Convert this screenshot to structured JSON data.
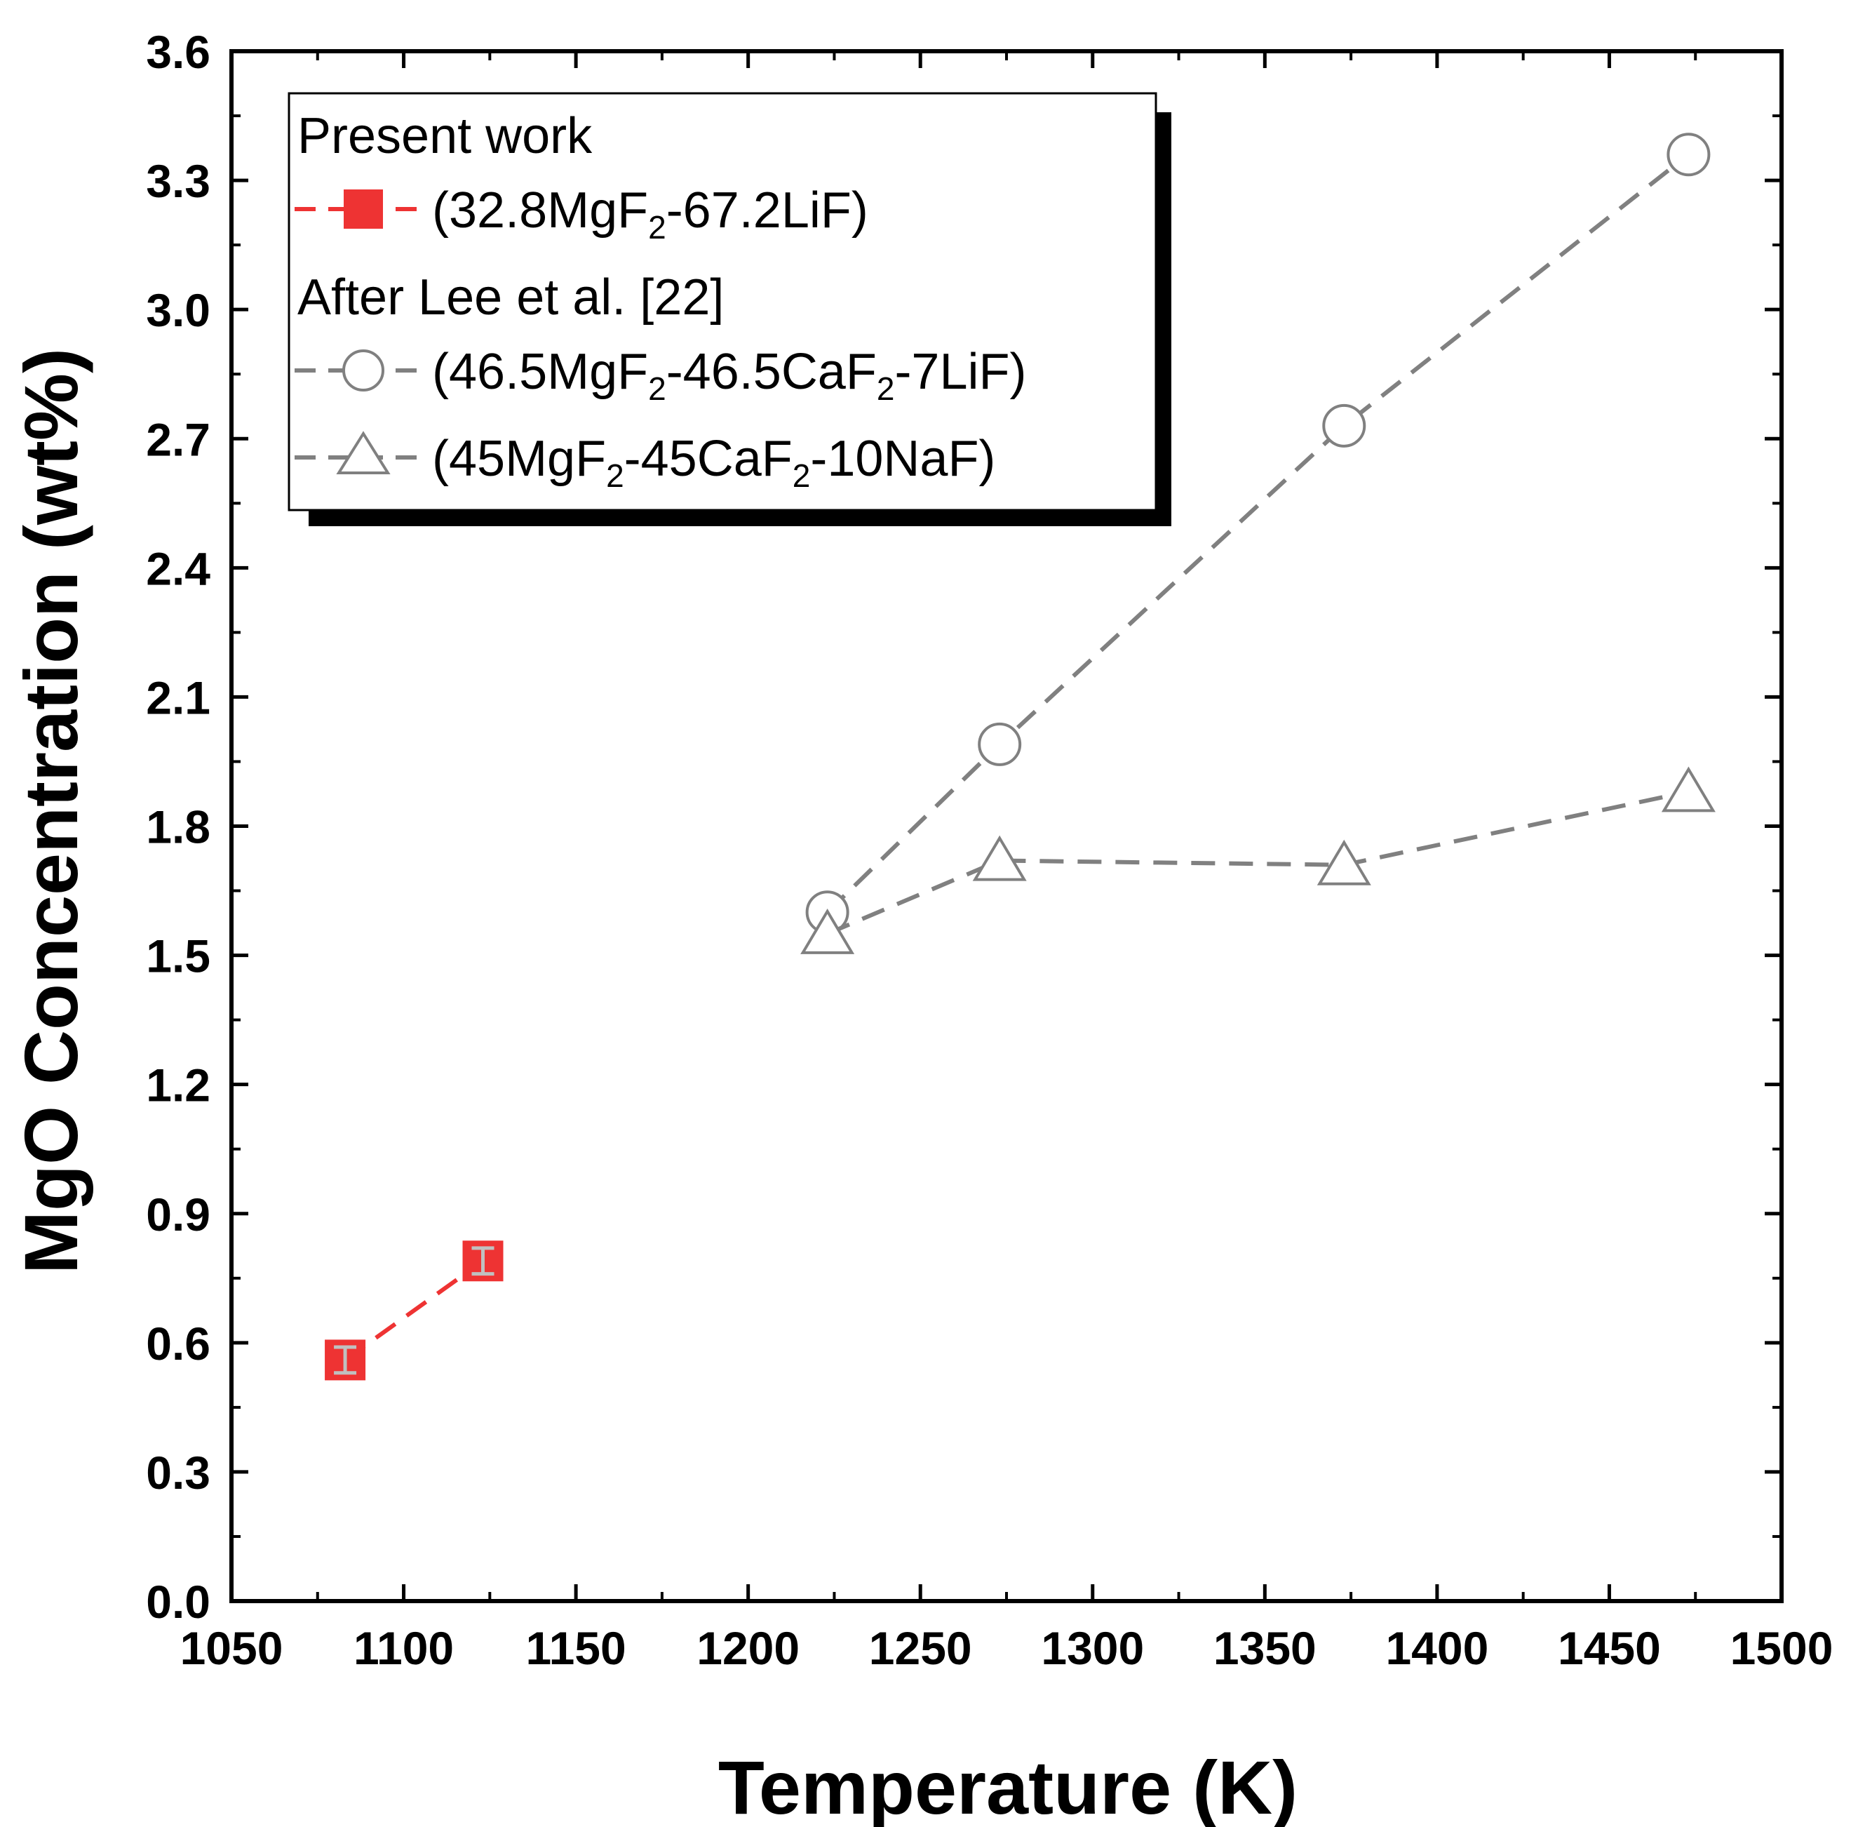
{
  "chart_data": {
    "type": "line",
    "xlabel": "Temperature (K)",
    "ylabel": "MgO Concentration (wt%)",
    "xlim": [
      1050,
      1500
    ],
    "ylim": [
      0.0,
      3.6
    ],
    "xticks": [
      1050,
      1100,
      1150,
      1200,
      1250,
      1300,
      1350,
      1400,
      1450,
      1500
    ],
    "yticks": [
      0.0,
      0.3,
      0.6,
      0.9,
      1.2,
      1.5,
      1.8,
      2.1,
      2.4,
      2.7,
      3.0,
      3.3,
      3.6
    ],
    "xtick_labels": [
      "1050",
      "1100",
      "1150",
      "1200",
      "1250",
      "1300",
      "1350",
      "1400",
      "1450",
      "1500"
    ],
    "ytick_labels": [
      "0.0",
      "0.3",
      "0.6",
      "0.9",
      "1.2",
      "1.5",
      "1.8",
      "2.1",
      "2.4",
      "2.7",
      "3.0",
      "3.3",
      "3.6"
    ],
    "grid": false,
    "legend": {
      "placement": "top-left",
      "group_titles": [
        "Present work",
        "After Lee et al. [22]"
      ],
      "entries": [
        {
          "label": "(32.8MgF2-67.2LiF)",
          "parts": {
            "a": "(32.8MgF",
            "b": "2",
            "c": "-67.2LiF)"
          }
        },
        {
          "label": "(46.5MgF2-46.5CaF2-7LiF)",
          "parts": {
            "a": "(46.5MgF",
            "b": "2",
            "c": "-46.5CaF",
            "d": "2",
            "e": "-7LiF)"
          }
        },
        {
          "label": "(45MgF2-45CaF2-10NaF)",
          "parts": {
            "a": "(45MgF",
            "b": "2",
            "c": "-45CaF",
            "d": "2",
            "e": "-10NaF)"
          }
        }
      ]
    },
    "series": [
      {
        "name": "(32.8MgF2-67.2LiF)",
        "group": "Present work",
        "marker": "filled-square",
        "color": "#ee3333",
        "errorbar_color": "#c0c0c0",
        "x": [
          1083,
          1123
        ],
        "y": [
          0.56,
          0.79
        ],
        "yerr": [
          0.03,
          0.03
        ]
      },
      {
        "name": "(46.5MgF2-46.5CaF2-7LiF)",
        "group": "After Lee et al. [22]",
        "marker": "open-circle",
        "color": "#808080",
        "x": [
          1223,
          1273,
          1373,
          1473
        ],
        "y": [
          1.6,
          1.99,
          2.73,
          3.36
        ]
      },
      {
        "name": "(45MgF2-45CaF2-10NaF)",
        "group": "After Lee et al. [22]",
        "marker": "open-triangle",
        "color": "#808080",
        "x": [
          1223,
          1273,
          1373,
          1473
        ],
        "y": [
          1.55,
          1.72,
          1.71,
          1.88
        ]
      }
    ]
  }
}
